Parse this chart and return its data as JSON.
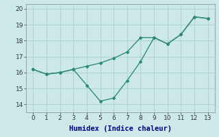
{
  "line1_x": [
    0,
    1,
    2,
    3,
    4,
    5,
    6,
    7,
    8,
    9,
    10,
    11,
    12,
    13
  ],
  "line1_y": [
    16.2,
    15.9,
    16.0,
    16.2,
    16.4,
    16.6,
    16.9,
    17.3,
    18.2,
    18.2,
    17.8,
    18.4,
    19.5,
    19.4
  ],
  "line2_x": [
    0,
    1,
    2,
    3,
    4,
    5,
    6,
    7,
    8,
    9,
    10,
    11,
    12,
    13
  ],
  "line2_y": [
    16.2,
    15.9,
    16.0,
    16.2,
    15.2,
    14.2,
    14.4,
    15.5,
    16.7,
    18.2,
    17.8,
    18.4,
    19.5,
    19.4
  ],
  "line_color": "#2e8b7a",
  "bg_color": "#cce8e8",
  "grid_color": "#b0d4d4",
  "xlabel": "Humidex (Indice chaleur)",
  "ylim": [
    13.5,
    20.3
  ],
  "xlim": [
    -0.5,
    13.5
  ],
  "yticks": [
    14,
    15,
    16,
    17,
    18,
    19,
    20
  ],
  "xticks": [
    0,
    1,
    2,
    3,
    4,
    5,
    6,
    7,
    8,
    9,
    10,
    11,
    12,
    13
  ],
  "xlabel_fontsize": 7.5,
  "tick_fontsize": 6.5
}
